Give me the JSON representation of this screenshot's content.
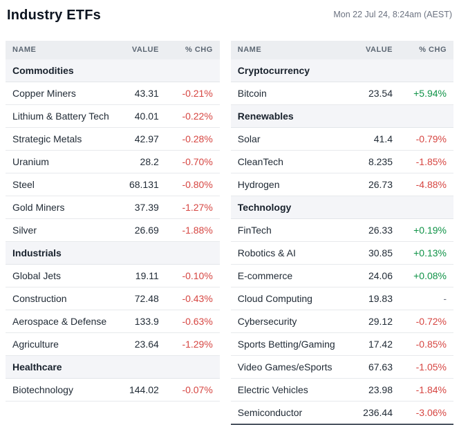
{
  "header": {
    "title": "Industry ETFs",
    "timestamp": "Mon 22 Jul 24, 8:24am (AEST)"
  },
  "table_headers": {
    "name": "NAME",
    "value": "VALUE",
    "chg": "% CHG"
  },
  "colors": {
    "positive": "#0e9246",
    "negative": "#d64541",
    "neutral": "#6b7280"
  },
  "tables": [
    {
      "sections": [
        {
          "title": "Commodities",
          "rows": [
            {
              "name": "Copper Miners",
              "value": "43.31",
              "chg": "-0.21%",
              "dir": "down"
            },
            {
              "name": "Lithium & Battery Tech",
              "value": "40.01",
              "chg": "-0.22%",
              "dir": "down"
            },
            {
              "name": "Strategic Metals",
              "value": "42.97",
              "chg": "-0.28%",
              "dir": "down"
            },
            {
              "name": "Uranium",
              "value": "28.2",
              "chg": "-0.70%",
              "dir": "down"
            },
            {
              "name": "Steel",
              "value": "68.131",
              "chg": "-0.80%",
              "dir": "down"
            },
            {
              "name": "Gold Miners",
              "value": "37.39",
              "chg": "-1.27%",
              "dir": "down"
            },
            {
              "name": "Silver",
              "value": "26.69",
              "chg": "-1.88%",
              "dir": "down"
            }
          ]
        },
        {
          "title": "Industrials",
          "rows": [
            {
              "name": "Global Jets",
              "value": "19.11",
              "chg": "-0.10%",
              "dir": "down"
            },
            {
              "name": "Construction",
              "value": "72.48",
              "chg": "-0.43%",
              "dir": "down"
            },
            {
              "name": "Aerospace & Defense",
              "value": "133.9",
              "chg": "-0.63%",
              "dir": "down"
            },
            {
              "name": "Agriculture",
              "value": "23.64",
              "chg": "-1.29%",
              "dir": "down"
            }
          ]
        },
        {
          "title": "Healthcare",
          "rows": [
            {
              "name": "Biotechnology",
              "value": "144.02",
              "chg": "-0.07%",
              "dir": "down"
            }
          ]
        }
      ]
    },
    {
      "sections": [
        {
          "title": "Cryptocurrency",
          "rows": [
            {
              "name": "Bitcoin",
              "value": "23.54",
              "chg": "+5.94%",
              "dir": "up"
            }
          ]
        },
        {
          "title": "Renewables",
          "rows": [
            {
              "name": "Solar",
              "value": "41.4",
              "chg": "-0.79%",
              "dir": "down"
            },
            {
              "name": "CleanTech",
              "value": "8.235",
              "chg": "-1.85%",
              "dir": "down"
            },
            {
              "name": "Hydrogen",
              "value": "26.73",
              "chg": "-4.88%",
              "dir": "down"
            }
          ]
        },
        {
          "title": "Technology",
          "rows": [
            {
              "name": "FinTech",
              "value": "26.33",
              "chg": "+0.19%",
              "dir": "up"
            },
            {
              "name": "Robotics & AI",
              "value": "30.85",
              "chg": "+0.13%",
              "dir": "up"
            },
            {
              "name": "E-commerce",
              "value": "24.06",
              "chg": "+0.08%",
              "dir": "up"
            },
            {
              "name": "Cloud Computing",
              "value": "19.83",
              "chg": "-",
              "dir": "flat"
            },
            {
              "name": "Cybersecurity",
              "value": "29.12",
              "chg": "-0.72%",
              "dir": "down"
            },
            {
              "name": "Sports Betting/Gaming",
              "value": "17.42",
              "chg": "-0.85%",
              "dir": "down"
            },
            {
              "name": "Video Games/eSports",
              "value": "67.63",
              "chg": "-1.05%",
              "dir": "down"
            },
            {
              "name": "Electric Vehicles",
              "value": "23.98",
              "chg": "-1.84%",
              "dir": "down"
            },
            {
              "name": "Semiconductor",
              "value": "236.44",
              "chg": "-3.06%",
              "dir": "down"
            }
          ]
        }
      ]
    }
  ]
}
